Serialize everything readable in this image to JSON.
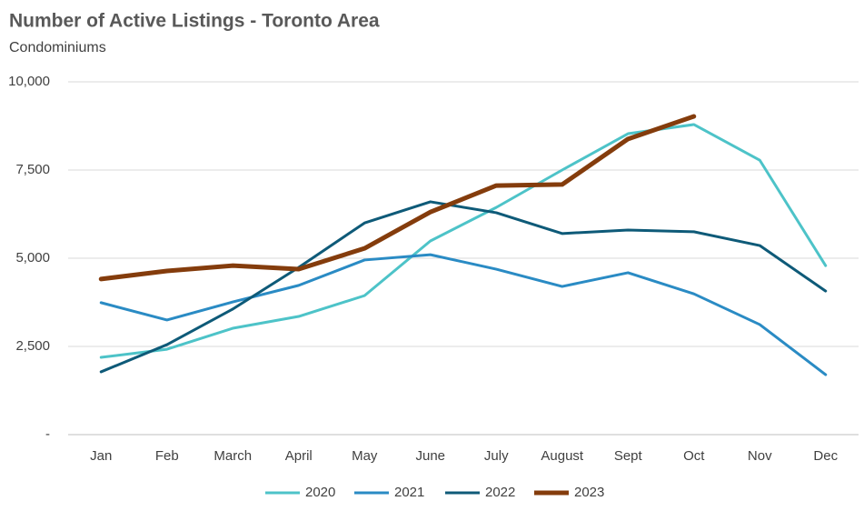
{
  "chart_data": {
    "type": "line",
    "title": "Number of Active Listings - Toronto Area",
    "subtitle": "Condominiums",
    "categories": [
      "Jan",
      "Feb",
      "March",
      "April",
      "May",
      "June",
      "July",
      "August",
      "Sept",
      "Oct",
      "Nov",
      "Dec"
    ],
    "series": [
      {
        "name": "2020",
        "color": "#4dc3c8",
        "values": [
          2190,
          2420,
          3015,
          3350,
          3940,
          5490,
          6440,
          7500,
          8530,
          8790,
          7780,
          4790
        ]
      },
      {
        "name": "2021",
        "color": "#2a8bc4",
        "values": [
          3740,
          3250,
          3760,
          4230,
          4950,
          5100,
          4690,
          4200,
          4590,
          3990,
          3120,
          1700
        ]
      },
      {
        "name": "2022",
        "color": "#0e5a78",
        "values": [
          1780,
          2550,
          3560,
          4740,
          6000,
          6600,
          6290,
          5700,
          5800,
          5750,
          5360,
          4070
        ]
      },
      {
        "name": "2023",
        "color": "#843c0c",
        "values": [
          4410,
          4640,
          4790,
          4690,
          5280,
          6310,
          7060,
          7090,
          8380,
          9020,
          null,
          null
        ]
      }
    ],
    "ylim": [
      0,
      10000
    ],
    "yticks": [
      {
        "value": 0,
        "label": "-"
      },
      {
        "value": 2500,
        "label": "2,500"
      },
      {
        "value": 5000,
        "label": "5,000"
      },
      {
        "value": 7500,
        "label": "7,500"
      },
      {
        "value": 10000,
        "label": "10,000"
      }
    ],
    "grid": true,
    "legend": "bottom"
  }
}
